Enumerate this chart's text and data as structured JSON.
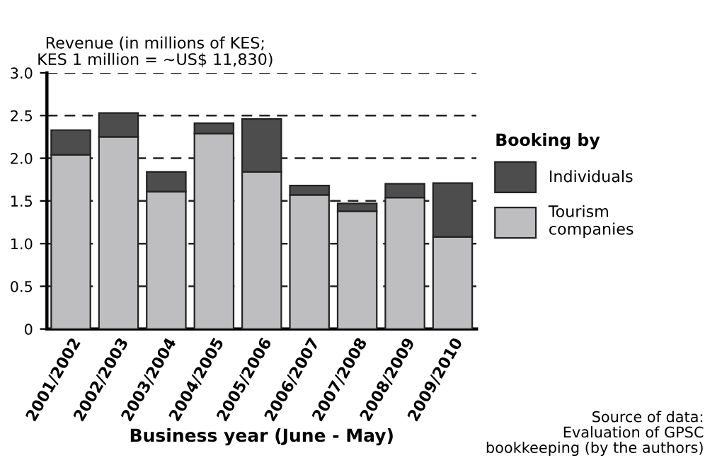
{
  "chart_data": {
    "type": "bar",
    "stacked": true,
    "ylabel": "Revenue (in millions of KES;\nKES 1 million = ~US$ 11,830)",
    "xlabel": "Business year (June - May)",
    "legend_title": "Booking by",
    "legend": "right",
    "categories": [
      "2001/2002",
      "2002/2003",
      "2003/2004",
      "2004/2005",
      "2005/2006",
      "2006/2007",
      "2007/2008",
      "2008/2009",
      "2009/2010"
    ],
    "series": [
      {
        "name": "Tourism\ncompanies",
        "color": "#bebec0",
        "values": [
          2.04,
          2.25,
          1.61,
          2.29,
          1.84,
          1.57,
          1.38,
          1.54,
          1.08
        ]
      },
      {
        "name": "Individuals",
        "color": "#4d4d4d",
        "values": [
          0.29,
          0.28,
          0.23,
          0.12,
          0.62,
          0.11,
          0.09,
          0.16,
          0.63
        ]
      }
    ],
    "ylim": [
      0,
      3
    ],
    "yticks": [
      0,
      0.5,
      {
        "value": 1,
        "label": "1.0"
      },
      1.5,
      {
        "value": 2,
        "label": "2.0"
      },
      2.5,
      {
        "value": 3,
        "label": "3.0"
      }
    ],
    "grid": "y",
    "line_style": "dashed",
    "annotations": [
      "Source of data:\nEvaluation of GPSC\nbookkeeping (by the authors)"
    ]
  }
}
